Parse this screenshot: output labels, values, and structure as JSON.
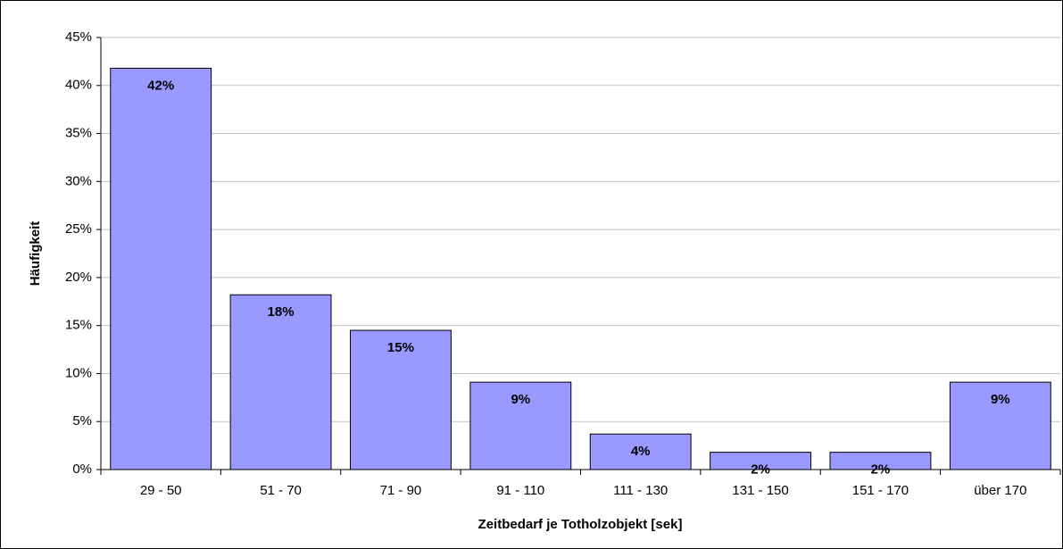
{
  "chart_data": {
    "type": "bar",
    "xlabel": "Zeitbedarf je Totholzobjekt [sek]",
    "ylabel": "Häufigkeit",
    "categories": [
      "29 - 50",
      "51 - 70",
      "71 - 90",
      "91 - 110",
      "111 - 130",
      "131 - 150",
      "151 - 170",
      "über 170"
    ],
    "values": [
      41.8,
      18.2,
      14.5,
      9.1,
      3.7,
      1.8,
      1.8,
      9.1
    ],
    "value_labels": [
      "42%",
      "18%",
      "15%",
      "9%",
      "4%",
      "2%",
      "2%",
      "9%"
    ],
    "color": "#9999ff",
    "ylim": [
      0,
      45
    ],
    "yticks": [
      {
        "value": 0,
        "label": "0%"
      },
      {
        "value": 5,
        "label": "5%"
      },
      {
        "value": 10,
        "label": "10%"
      },
      {
        "value": 15,
        "label": "15%"
      },
      {
        "value": 20,
        "label": "20%"
      },
      {
        "value": 25,
        "label": "25%"
      },
      {
        "value": 30,
        "label": "30%"
      },
      {
        "value": 35,
        "label": "35%"
      },
      {
        "value": 40,
        "label": "40%"
      },
      {
        "value": 45,
        "label": "45%"
      }
    ],
    "grid": true
  }
}
